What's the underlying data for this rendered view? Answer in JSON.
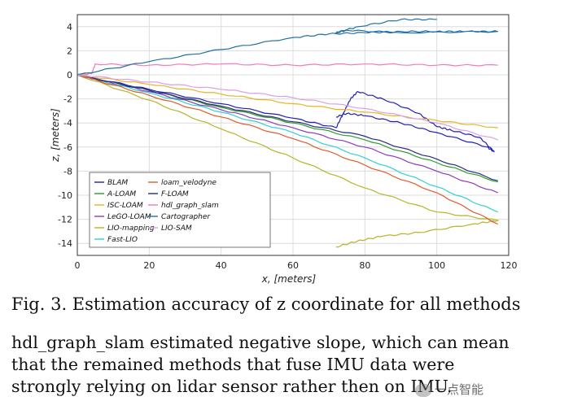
{
  "chart_data": {
    "type": "line",
    "xlabel": "x, [meters]",
    "ylabel": "z, [meters]",
    "xlim": [
      0,
      120
    ],
    "ylim": [
      -15,
      5
    ],
    "xticks": [
      0,
      20,
      40,
      60,
      80,
      100,
      120
    ],
    "yticks": [
      4,
      2,
      0,
      -2,
      -4,
      -6,
      -8,
      -10,
      -12,
      -14
    ],
    "grid": true,
    "legend_position": "bottom-left",
    "series": [
      {
        "name": "BLAM",
        "color": "#1f1fb4",
        "x": [
          0,
          20,
          40,
          60,
          72,
          74,
          76,
          78,
          85,
          95,
          100,
          104,
          112,
          116,
          114,
          100,
          90,
          80,
          75,
          72
        ],
        "y": [
          0,
          -1.2,
          -2.4,
          -3.6,
          -4.4,
          -3.2,
          -2.0,
          -1.4,
          -2.0,
          -3.2,
          -4.3,
          -4.6,
          -5.2,
          -6.4,
          -6.0,
          -4.8,
          -4.0,
          -3.4,
          -3.2,
          -3.5
        ]
      },
      {
        "name": "A-LOAM",
        "color": "#2a9d2a",
        "x": [
          0,
          20,
          40,
          60,
          80,
          100,
          117
        ],
        "y": [
          0,
          -1.3,
          -2.7,
          -4.0,
          -5.4,
          -7.3,
          -8.9
        ]
      },
      {
        "name": "ISC-LOAM",
        "color": "#e6b422",
        "x": [
          0,
          20,
          40,
          60,
          80,
          100,
          117
        ],
        "y": [
          0,
          -0.8,
          -1.6,
          -2.4,
          -3.1,
          -3.8,
          -4.4
        ]
      },
      {
        "name": "LeGO-LOAM",
        "color": "#8a3ab9",
        "x": [
          0,
          20,
          40,
          60,
          80,
          100,
          117
        ],
        "y": [
          0,
          -1.4,
          -2.9,
          -4.4,
          -6.0,
          -8.0,
          -9.8
        ]
      },
      {
        "name": "LIO-mapping",
        "color": "#b5b52a",
        "x": [
          0,
          20,
          40,
          60,
          80,
          100,
          117,
          110,
          95,
          85,
          78,
          72
        ],
        "y": [
          0,
          -2.1,
          -4.5,
          -6.9,
          -9.4,
          -11.4,
          -12.1,
          -12.4,
          -13.1,
          -13.4,
          -13.8,
          -14.3
        ]
      },
      {
        "name": "Fast-LIO",
        "color": "#2ed1d1",
        "x": [
          0,
          20,
          40,
          60,
          80,
          100,
          117
        ],
        "y": [
          0,
          -1.5,
          -3.1,
          -4.8,
          -6.9,
          -9.3,
          -11.4
        ]
      },
      {
        "name": "loam_velodyne",
        "color": "#e05a28",
        "x": [
          0,
          20,
          40,
          60,
          80,
          100,
          117
        ],
        "y": [
          0,
          -1.7,
          -3.5,
          -5.3,
          -7.5,
          -9.8,
          -12.4
        ]
      },
      {
        "name": "F-LOAM",
        "color": "#2a2a80",
        "x": [
          0,
          20,
          40,
          60,
          80,
          100,
          117
        ],
        "y": [
          0,
          -1.3,
          -2.6,
          -3.9,
          -5.1,
          -7.0,
          -8.8
        ]
      },
      {
        "name": "hdl_graph_slam",
        "color": "#f07bb8",
        "x": [
          0,
          4,
          5,
          20,
          40,
          60,
          80,
          100,
          117
        ],
        "y": [
          0,
          0.1,
          0.9,
          0.8,
          0.9,
          0.8,
          0.9,
          0.8,
          0.8
        ]
      },
      {
        "name": "Cartographer",
        "color": "#1e6fa8",
        "x": [
          0,
          20,
          40,
          60,
          70,
          80,
          90,
          100,
          108,
          117,
          90,
          75,
          72,
          78,
          90,
          100
        ],
        "y": [
          0,
          1.1,
          2.1,
          3.1,
          3.4,
          3.5,
          3.6,
          3.6,
          3.6,
          3.6,
          3.5,
          3.7,
          3.5,
          4.0,
          4.6,
          4.6
        ]
      },
      {
        "name": "LIO-SAM",
        "color": "#d9a0e8",
        "x": [
          0,
          20,
          40,
          60,
          80,
          100,
          117
        ],
        "y": [
          0,
          -0.6,
          -1.2,
          -1.9,
          -2.8,
          -4.0,
          -5.4
        ]
      }
    ]
  },
  "caption": "Fig. 3. Estimation accuracy of z coordinate for all methods",
  "body_lines": [
    "hdl_graph_slam estimated negative slope, which can mean",
    "that the remained methods that fuse IMU data were",
    "strongly relying on lidar sensor rather then on IMU."
  ],
  "watermark": "一点智能"
}
